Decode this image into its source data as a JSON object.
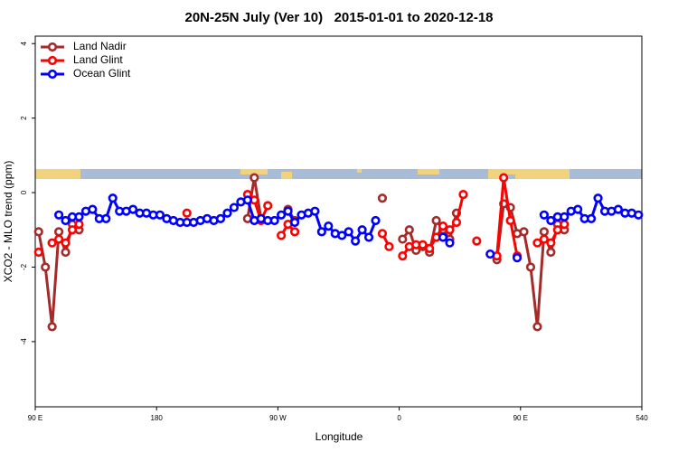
{
  "chart_data": {
    "type": "line",
    "title": "20N-25N July (Ver 10)   2015-01-01 to 2020-12-18",
    "xlabel": "Longitude",
    "ylabel": "XCO2 - MLO trend (ppm)",
    "xlim": [
      90,
      540
    ],
    "ylim": [
      -5.75,
      4.2
    ],
    "xticks": [
      {
        "value": 90,
        "label": "90 E"
      },
      180,
      {
        "value": 270,
        "label": "90 W"
      },
      {
        "value": 360,
        "label": "0"
      },
      {
        "value": 450,
        "label": "90 E"
      },
      540
    ],
    "yticks": [
      -4,
      -2,
      0,
      2,
      4
    ],
    "legend": "top-left",
    "series": [
      {
        "name": "Land Nadir",
        "color": "#a52a2a",
        "x": [
          92.5,
          97.5,
          102.5,
          107.5,
          112.5,
          117.5,
          122.5,
          127.5,
          247.5,
          252.5,
          257.5,
          262.5,
          277.5,
          282.5,
          287.5,
          347.5,
          352.5,
          362.5,
          367.5,
          372.5,
          377.5,
          382.5,
          387.5,
          392.5,
          397.5,
          402.5,
          407.5,
          432.5,
          437.5,
          442.5,
          447.5,
          452.5,
          457.5,
          462.5,
          467.5,
          472.5,
          477.5,
          482.5
        ],
        "values": [
          -1.05,
          -2.0,
          -3.6,
          -1.05,
          -1.6,
          -0.85,
          -1.0,
          null,
          -0.7,
          0.4,
          -0.7,
          null,
          -0.45,
          -0.75,
          null,
          -0.15,
          null,
          -1.25,
          -1.0,
          -1.55,
          -1.45,
          -1.6,
          -0.75,
          -1.0,
          -1.25,
          -0.55,
          null,
          -1.8,
          -0.3,
          -0.4,
          -1.1,
          -1.05,
          -2.0,
          -3.6,
          -1.05,
          -1.6,
          -0.85,
          -1.0
        ]
      },
      {
        "name": "Land Glint",
        "color": "#ff0000",
        "x": [
          92.5,
          97.5,
          102.5,
          107.5,
          112.5,
          117.5,
          122.5,
          127.5,
          202.5,
          207.5,
          247.5,
          252.5,
          257.5,
          262.5,
          267.5,
          272.5,
          277.5,
          282.5,
          287.5,
          347.5,
          352.5,
          357.5,
          362.5,
          367.5,
          372.5,
          377.5,
          382.5,
          387.5,
          392.5,
          397.5,
          402.5,
          407.5,
          412.5,
          417.5,
          422.5,
          432.5,
          437.5,
          442.5,
          447.5,
          452.5,
          462.5,
          467.5,
          472.5,
          477.5,
          482.5
        ],
        "values": [
          -1.6,
          null,
          -1.35,
          -1.25,
          -1.35,
          -1.0,
          -0.85,
          null,
          -0.55,
          null,
          -0.05,
          -0.2,
          -0.75,
          -0.35,
          null,
          -1.15,
          -0.85,
          -1.05,
          null,
          -1.1,
          -1.45,
          null,
          -1.7,
          -1.45,
          -1.4,
          -1.4,
          -1.5,
          -1.2,
          -0.9,
          -1.0,
          -0.8,
          -0.05,
          null,
          -1.3,
          null,
          -1.7,
          0.4,
          -0.75,
          -1.7,
          null,
          -1.35,
          -1.25,
          -1.35,
          -1.0,
          -0.85
        ]
      },
      {
        "name": "Ocean Glint",
        "color": "#0000ff",
        "x": [
          107.5,
          112.5,
          117.5,
          122.5,
          127.5,
          132.5,
          137.5,
          142.5,
          147.5,
          152.5,
          157.5,
          162.5,
          167.5,
          172.5,
          177.5,
          182.5,
          187.5,
          192.5,
          197.5,
          202.5,
          207.5,
          212.5,
          217.5,
          222.5,
          227.5,
          232.5,
          237.5,
          242.5,
          247.5,
          252.5,
          257.5,
          262.5,
          267.5,
          272.5,
          277.5,
          282.5,
          287.5,
          292.5,
          297.5,
          302.5,
          307.5,
          312.5,
          317.5,
          322.5,
          327.5,
          332.5,
          337.5,
          342.5,
          347.5,
          392.5,
          397.5,
          402.5,
          427.5,
          432.5,
          447.5,
          452.5,
          467.5,
          472.5,
          477.5,
          482.5,
          487.5,
          492.5,
          497.5,
          502.5,
          507.5,
          512.5,
          517.5,
          522.5,
          527.5,
          532.5,
          537.5
        ],
        "values": [
          -0.6,
          -0.75,
          -0.65,
          -0.65,
          -0.5,
          -0.45,
          -0.7,
          -0.7,
          -0.15,
          -0.5,
          -0.5,
          -0.45,
          -0.55,
          -0.55,
          -0.6,
          -0.6,
          -0.7,
          -0.75,
          -0.8,
          -0.8,
          -0.8,
          -0.75,
          -0.7,
          -0.75,
          -0.7,
          -0.55,
          -0.4,
          -0.25,
          -0.2,
          -0.75,
          -0.7,
          -0.75,
          -0.75,
          -0.6,
          -0.5,
          -0.8,
          -0.6,
          -0.55,
          -0.5,
          -1.05,
          -0.9,
          -1.1,
          -1.15,
          -1.05,
          -1.3,
          -1.0,
          -1.2,
          -0.75,
          null,
          -1.2,
          -1.35,
          null,
          -1.65,
          null,
          -1.75,
          null,
          -0.6,
          -0.75,
          -0.65,
          -0.65,
          -0.5,
          -0.45,
          -0.7,
          -0.7,
          -0.15,
          -0.5,
          -0.5,
          -0.45,
          -0.55,
          -0.55,
          -0.6
        ]
      }
    ]
  }
}
